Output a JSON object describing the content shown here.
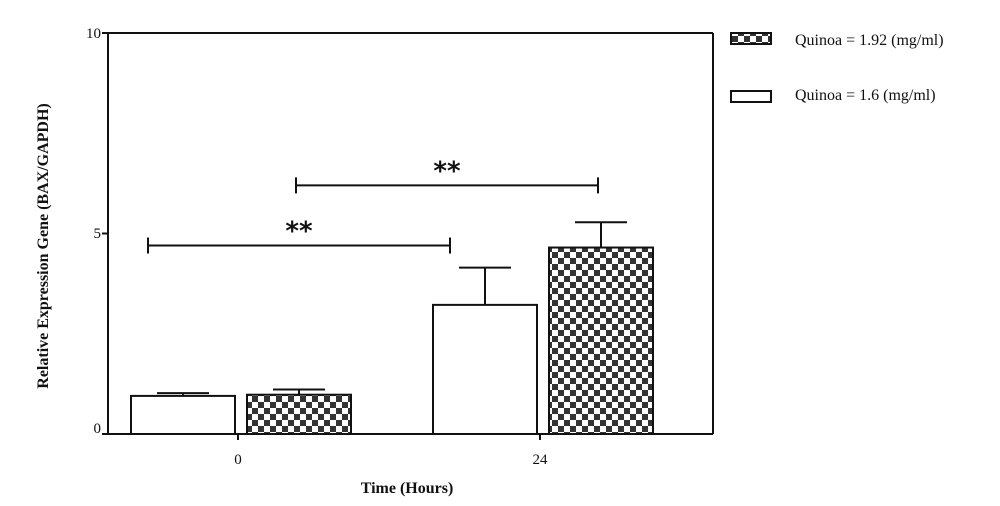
{
  "chart_data": {
    "type": "bar",
    "xlabel": "Time (Hours)",
    "ylabel": "Relative Expression Gene (BAX/GAPDH)",
    "categories": [
      "0",
      "24"
    ],
    "ylim": [
      0,
      10
    ],
    "yticks": [
      "0",
      "5",
      "10"
    ],
    "grid": false,
    "legend_position": "top-right",
    "series": [
      {
        "name": "Quinoa = 1.6 (mg/ml)",
        "fill": "plain",
        "color": "#ffffff",
        "values": [
          0.95,
          3.22
        ],
        "errors": [
          0.07,
          0.93
        ]
      },
      {
        "name": "Quinoa = 1.92 (mg/ml)",
        "fill": "checkered",
        "color": "#333333",
        "values": [
          0.98,
          4.65
        ],
        "errors": [
          0.13,
          0.63
        ]
      }
    ],
    "annotations": [
      {
        "label": "**",
        "from": "0 / Quinoa = 1.6 (mg/ml)",
        "to": "24 / Quinoa = 1.6 (mg/ml)",
        "level": 4.7
      },
      {
        "label": "**",
        "from": "0 / Quinoa = 1.92 (mg/ml)",
        "to": "24 / Quinoa = 1.92 (mg/ml)",
        "level": 6.2
      }
    ]
  }
}
